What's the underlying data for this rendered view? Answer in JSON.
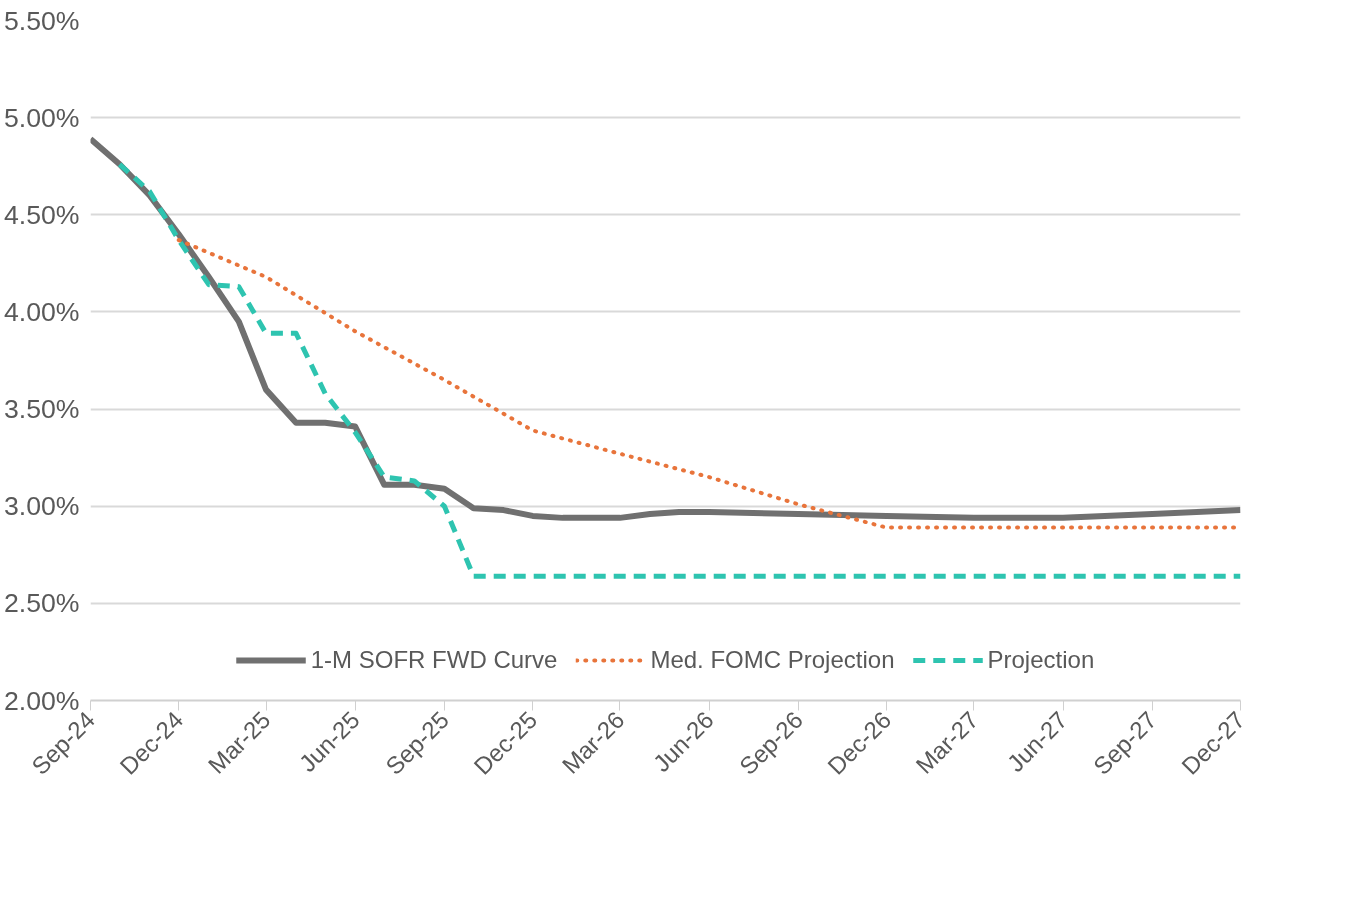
{
  "chart_data": {
    "type": "line",
    "ylim": [
      2.0,
      5.5
    ],
    "yticks": [
      {
        "value": 2.0,
        "label": "2.00%"
      },
      {
        "value": 2.5,
        "label": "2.50%"
      },
      {
        "value": 3.0,
        "label": "3.00%"
      },
      {
        "value": 3.5,
        "label": "3.50%"
      },
      {
        "value": 4.0,
        "label": "4.00%"
      },
      {
        "value": 4.5,
        "label": "4.50%"
      },
      {
        "value": 5.0,
        "label": "5.00%"
      },
      {
        "value": 5.5,
        "label": "5.50%"
      }
    ],
    "xlim": [
      "2024-09",
      "2027-12"
    ],
    "xticks": [
      {
        "value": "2024-09",
        "label": "Sep-24"
      },
      {
        "value": "2024-12",
        "label": "Dec-24"
      },
      {
        "value": "2025-03",
        "label": "Mar-25"
      },
      {
        "value": "2025-06",
        "label": "Jun-25"
      },
      {
        "value": "2025-09",
        "label": "Sep-25"
      },
      {
        "value": "2025-12",
        "label": "Dec-25"
      },
      {
        "value": "2026-03",
        "label": "Mar-26"
      },
      {
        "value": "2026-06",
        "label": "Jun-26"
      },
      {
        "value": "2026-09",
        "label": "Sep-26"
      },
      {
        "value": "2026-12",
        "label": "Dec-26"
      },
      {
        "value": "2027-03",
        "label": "Mar-27"
      },
      {
        "value": "2027-06",
        "label": "Jun-27"
      },
      {
        "value": "2027-09",
        "label": "Sep-27"
      },
      {
        "value": "2027-12",
        "label": "Dec-27"
      }
    ],
    "grid": "y",
    "legend": "bottom",
    "marker": "none",
    "series": [
      {
        "name": "1-M SOFR FWD Curve",
        "color": "#707070",
        "line_style": "solid",
        "x": [
          "2024-09",
          "2024-10",
          "2024-11",
          "2024-12",
          "2025-01",
          "2025-02",
          "2025-03",
          "2025-04",
          "2025-05",
          "2025-06",
          "2025-07",
          "2025-08",
          "2025-09",
          "2025-10",
          "2025-11",
          "2025-12",
          "2026-01",
          "2026-02",
          "2026-03",
          "2026-04",
          "2026-05",
          "2026-06",
          "2026-09",
          "2026-12",
          "2027-03",
          "2027-06",
          "2027-09",
          "2027-12"
        ],
        "values": [
          4.89,
          4.76,
          4.6,
          4.4,
          4.18,
          3.95,
          3.6,
          3.43,
          3.43,
          3.41,
          3.11,
          3.11,
          3.09,
          2.99,
          2.98,
          2.95,
          2.94,
          2.94,
          2.94,
          2.96,
          2.97,
          2.97,
          2.96,
          2.95,
          2.94,
          2.94,
          2.96,
          2.98
        ]
      },
      {
        "name": "Med. FOMC Projection",
        "color": "#e8743b",
        "line_style": "dotted",
        "x": [
          "2024-12",
          "2025-03",
          "2025-06",
          "2025-09",
          "2025-12",
          "2026-03",
          "2026-06",
          "2026-09",
          "2026-12",
          "2027-03",
          "2027-06",
          "2027-09",
          "2027-12"
        ],
        "values": [
          4.37,
          4.18,
          3.9,
          3.65,
          3.39,
          3.27,
          3.15,
          3.01,
          2.89,
          2.89,
          2.89,
          2.89,
          2.89
        ]
      },
      {
        "name": "Projection",
        "color": "#2ec4b0",
        "line_style": "dashed",
        "x": [
          "2024-10",
          "2024-11",
          "2024-12",
          "2025-01",
          "2025-02",
          "2025-03",
          "2025-04",
          "2025-05",
          "2025-06",
          "2025-07",
          "2025-08",
          "2025-09",
          "2025-10",
          "2026-06",
          "2027-12"
        ],
        "values": [
          4.76,
          4.62,
          4.37,
          4.14,
          4.13,
          3.89,
          3.89,
          3.58,
          3.38,
          3.15,
          3.13,
          3.0,
          2.64,
          2.64,
          2.64
        ]
      }
    ]
  }
}
